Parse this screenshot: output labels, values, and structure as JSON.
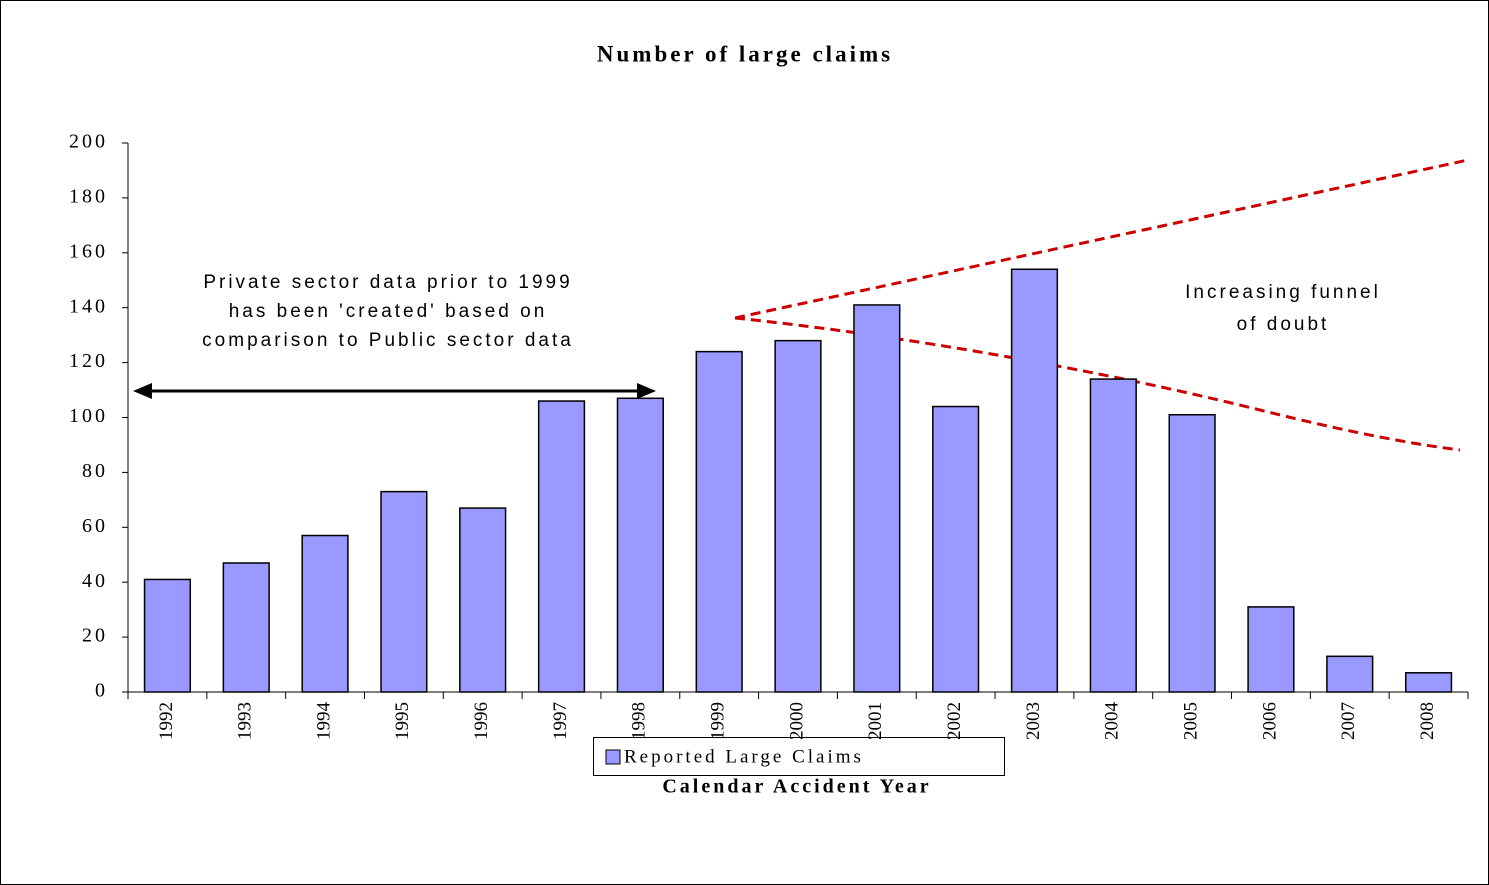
{
  "chart_data": {
    "type": "bar",
    "title": "Number of large claims",
    "x_label": "Calendar Accident Year",
    "categories": [
      "1992",
      "1993",
      "1994",
      "1995",
      "1996",
      "1997",
      "1998",
      "1999",
      "2000",
      "2001",
      "2002",
      "2003",
      "2004",
      "2005",
      "2006",
      "2007",
      "2008"
    ],
    "series": [
      {
        "name": "Reported Large Claims",
        "color": "#9999ff",
        "values": [
          41,
          47,
          57,
          73,
          67,
          106,
          107,
          124,
          128,
          141,
          104,
          154,
          114,
          101,
          31,
          13,
          7
        ]
      }
    ],
    "ylim": [
      0,
      200
    ],
    "yticks": [
      0,
      20,
      40,
      60,
      80,
      100,
      120,
      140,
      160,
      180,
      200
    ],
    "grid": false,
    "legend": "bottom",
    "annotations": [
      [
        "Private sector data prior to 1999",
        "has been 'created' based on",
        "comparison to Public sector data"
      ],
      [
        "Increasing funnel",
        "of doubt"
      ]
    ]
  }
}
